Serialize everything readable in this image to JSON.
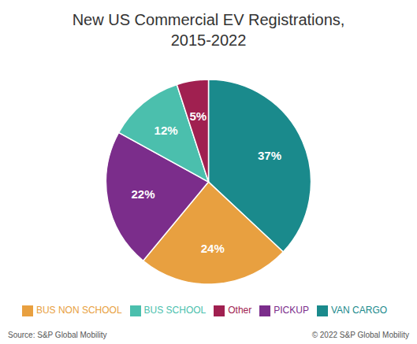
{
  "chart_data": {
    "type": "pie",
    "title": "New US Commercial EV Registrations,\n2015-2022",
    "categories": [
      "VAN CARGO",
      "BUS NON SCHOOL",
      "PICKUP",
      "BUS SCHOOL",
      "Other"
    ],
    "values": [
      37,
      24,
      22,
      12,
      5
    ],
    "value_labels": [
      "37%",
      "24%",
      "22%",
      "12%",
      "5%"
    ],
    "colors": [
      "#1a8a8c",
      "#e8a040",
      "#7b2d8b",
      "#4bbfad",
      "#a02050"
    ],
    "data_labels": true,
    "legend": "bottom",
    "annotations": [
      "Source: S&P Global Mobility",
      "© 2022 S&P Global Mobility"
    ]
  }
}
